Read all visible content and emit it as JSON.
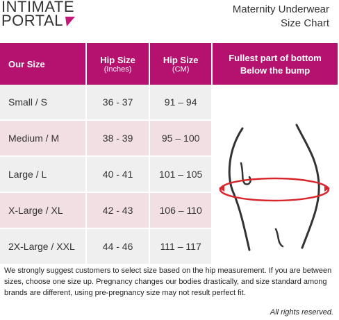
{
  "header": {
    "logo_line1": "INTIMATE",
    "logo_line2": "PORTAL",
    "title_line1": "Maternity Underwear",
    "title_line2": "Size Chart"
  },
  "table": {
    "columns": [
      {
        "title": "Our Size"
      },
      {
        "title": "Hip Size",
        "subtitle": "(Inches)"
      },
      {
        "title": "Hip Size",
        "subtitle": "(CM)"
      },
      {
        "title": "Fullest part of bottom",
        "subtitle": "Below the bump"
      }
    ],
    "rows": [
      [
        "Small / S",
        "36 - 37",
        "91 – 94"
      ],
      [
        "Medium / M",
        "38 - 39",
        "95 – 100"
      ],
      [
        "Large / L",
        "40 - 41",
        "101 – 105"
      ],
      [
        "X-Large / XL",
        "42 - 43",
        "106 – 110"
      ],
      [
        "2X-Large / XXL",
        "44 - 46",
        "111 – 117"
      ]
    ]
  },
  "footer": {
    "note": "We strongly suggest customers to select size based on the hip measurement.  If you are between sizes, choose one size up.  Pregnancy changes our bodies drastically, and size standard among brands are different, using pre-pregnancy size may not result perfect fit.",
    "rights": "All rights reserved."
  }
}
